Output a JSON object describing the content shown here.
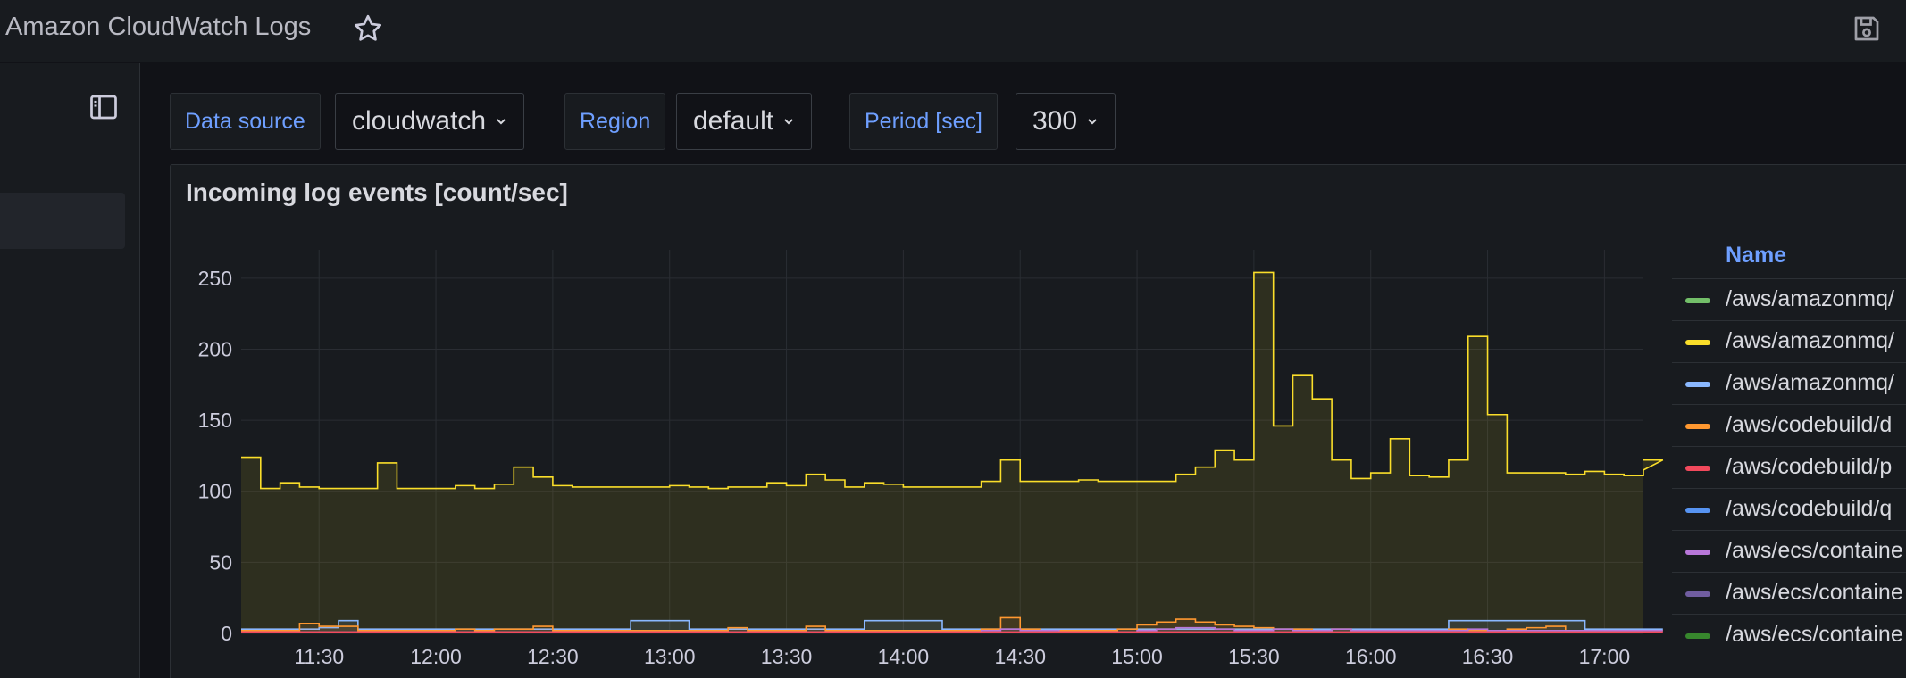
{
  "header": {
    "title": "Amazon CloudWatch Logs",
    "star_icon": "star-icon",
    "save_icon": "save-icon"
  },
  "sidenav": {
    "dock_icon": "dock-sidebar-icon"
  },
  "variables": {
    "datasource": {
      "label": "Data source",
      "value": "cloudwatch"
    },
    "region": {
      "label": "Region",
      "value": "default"
    },
    "period": {
      "label": "Period [sec]",
      "value": "300"
    }
  },
  "panel": {
    "title": "Incoming log events [count/sec]",
    "legend_header": "Name",
    "legend": [
      {
        "name": "/aws/amazonmq/",
        "color": "#73bf69"
      },
      {
        "name": "/aws/amazonmq/",
        "color": "#fade2a"
      },
      {
        "name": "/aws/amazonmq/",
        "color": "#8ab8ff"
      },
      {
        "name": "/aws/codebuild/d",
        "color": "#ff9830"
      },
      {
        "name": "/aws/codebuild/p",
        "color": "#f2495c"
      },
      {
        "name": "/aws/codebuild/q",
        "color": "#5794f2"
      },
      {
        "name": "/aws/ecs/containe",
        "color": "#b877d9"
      },
      {
        "name": "/aws/ecs/containe",
        "color": "#705da0"
      },
      {
        "name": "/aws/ecs/containe",
        "color": "#37872d"
      }
    ]
  },
  "chart_data": {
    "type": "area",
    "interpolation": "step",
    "x_range_minutes": [
      670,
      1030
    ],
    "x_step_minutes": 5,
    "xticks": [
      "11:30",
      "12:00",
      "12:30",
      "13:00",
      "13:30",
      "14:00",
      "14:30",
      "15:00",
      "15:30",
      "16:00",
      "16:30",
      "17:00"
    ],
    "yticks": [
      0,
      50,
      100,
      150,
      200,
      250
    ],
    "ylim": [
      0,
      270
    ],
    "grid": true,
    "legend_position": "right",
    "series": [
      {
        "color": "#fade2a",
        "values": [
          124,
          102,
          106,
          103,
          102,
          102,
          102,
          120,
          102,
          102,
          102,
          104,
          102,
          105,
          117,
          110,
          104,
          103,
          103,
          103,
          103,
          103,
          104,
          103,
          102,
          103,
          103,
          106,
          104,
          112,
          108,
          103,
          106,
          105,
          103,
          103,
          103,
          103,
          107,
          122,
          107,
          107,
          107,
          108,
          107,
          107,
          107,
          107,
          112,
          117,
          129,
          122,
          254,
          146,
          182,
          165,
          122,
          109,
          113,
          137,
          111,
          110,
          122,
          209,
          154,
          113,
          113,
          113,
          112,
          114,
          112,
          111,
          115,
          122
        ]
      },
      {
        "color": "#8ab8ff",
        "values": [
          3,
          3,
          3,
          3,
          4,
          9,
          3,
          3,
          3,
          3,
          3,
          3,
          3,
          3,
          3,
          3,
          3,
          3,
          3,
          3,
          9,
          9,
          9,
          3,
          3,
          3,
          3,
          3,
          3,
          3,
          3,
          3,
          9,
          9,
          9,
          9,
          3,
          3,
          3,
          3,
          3,
          3,
          3,
          3,
          3,
          3,
          3,
          3,
          3,
          3,
          3,
          3,
          3,
          3,
          3,
          3,
          3,
          3,
          3,
          3,
          3,
          3,
          9,
          9,
          9,
          9,
          9,
          9,
          9,
          3,
          3,
          3,
          3,
          3
        ]
      },
      {
        "color": "#ff9830",
        "values": [
          2,
          2,
          2,
          7,
          5,
          5,
          2,
          2,
          2,
          2,
          2,
          3,
          2,
          3,
          3,
          5,
          2,
          2,
          2,
          2,
          2,
          2,
          2,
          2,
          2,
          4,
          2,
          2,
          2,
          5,
          2,
          2,
          2,
          2,
          2,
          2,
          2,
          2,
          3,
          11,
          3,
          2,
          2,
          2,
          2,
          3,
          6,
          8,
          10,
          8,
          6,
          5,
          4,
          3,
          3,
          2,
          3,
          2,
          2,
          2,
          2,
          2,
          3,
          2,
          2,
          3,
          4,
          5,
          2,
          2,
          2,
          2,
          2,
          2
        ]
      },
      {
        "color": "#b877d9",
        "values": [
          1,
          1,
          1,
          1,
          1,
          1,
          1,
          1,
          1,
          1,
          1,
          1,
          1,
          1,
          1,
          1,
          1,
          1,
          1,
          1,
          1,
          1,
          1,
          1,
          1,
          1,
          1,
          1,
          1,
          1,
          1,
          1,
          1,
          1,
          1,
          1,
          1,
          1,
          2,
          3,
          2,
          2,
          1,
          1,
          1,
          1,
          2,
          3,
          4,
          4,
          3,
          2,
          2,
          3,
          2,
          2,
          3,
          2,
          2,
          2,
          2,
          2,
          2,
          3,
          2,
          2,
          2,
          2,
          2,
          2,
          2,
          2,
          2,
          2
        ]
      },
      {
        "color": "#f2495c",
        "values": [
          1,
          1,
          1,
          1,
          1,
          1,
          1,
          1,
          1,
          1,
          1,
          1,
          1,
          1,
          1,
          1,
          1,
          1,
          1,
          1,
          1,
          1,
          1,
          1,
          1,
          1,
          1,
          1,
          1,
          1,
          1,
          1,
          1,
          1,
          1,
          1,
          1,
          1,
          1,
          1,
          1,
          1,
          1,
          1,
          1,
          1,
          1,
          1,
          1,
          1,
          1,
          1,
          1,
          1,
          1,
          1,
          1,
          1,
          1,
          1,
          1,
          1,
          1,
          1,
          1,
          1,
          1,
          1,
          1,
          1,
          1,
          1,
          1,
          1
        ]
      }
    ]
  }
}
